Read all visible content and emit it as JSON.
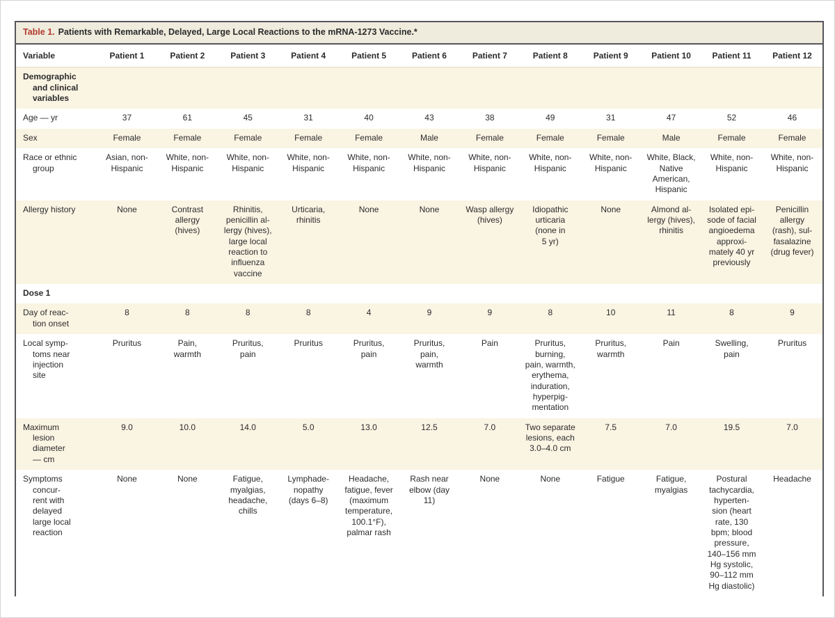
{
  "table": {
    "title": {
      "label": "Table 1.",
      "text": "Patients with Remarkable, Delayed, Large Local Reactions to the mRNA-1273 Vaccine.*"
    },
    "columns": [
      "Variable",
      "Patient 1",
      "Patient 2",
      "Patient 3",
      "Patient 4",
      "Patient 5",
      "Patient 6",
      "Patient 7",
      "Patient 8",
      "Patient 9",
      "Patient 10",
      "Patient 11",
      "Patient 12"
    ],
    "rows": [
      {
        "kind": "section",
        "shaded": true,
        "label": "Demographic\nand clinical\nvariables"
      },
      {
        "kind": "data",
        "shaded": false,
        "label": "Age — yr",
        "cells": [
          "37",
          "61",
          "45",
          "31",
          "40",
          "43",
          "38",
          "49",
          "31",
          "47",
          "52",
          "46"
        ]
      },
      {
        "kind": "data",
        "shaded": true,
        "label": "Sex",
        "cells": [
          "Female",
          "Female",
          "Female",
          "Female",
          "Female",
          "Male",
          "Female",
          "Female",
          "Female",
          "Male",
          "Female",
          "Female"
        ]
      },
      {
        "kind": "data",
        "shaded": false,
        "label": "Race or ethnic\ngroup",
        "cells": [
          "Asian, non-\nHispanic",
          "White, non-\nHispanic",
          "White, non-\nHispanic",
          "White, non-\nHispanic",
          "White, non-\nHispanic",
          "White, non-\nHispanic",
          "White, non-\nHispanic",
          "White, non-\nHispanic",
          "White, non-\nHispanic",
          "White, Black,\nNative\nAmerican,\nHispanic",
          "White, non-\nHispanic",
          "White, non-\nHispanic"
        ]
      },
      {
        "kind": "data",
        "shaded": true,
        "label": "Allergy history",
        "cells": [
          "None",
          "Contrast\nallergy\n(hives)",
          "Rhinitis,\npenicillin al-\nlergy (hives),\nlarge local\nreaction to\ninfluenza\nvaccine",
          "Urticaria,\nrhinitis",
          "None",
          "None",
          "Wasp allergy\n(hives)",
          "Idiopathic\nurticaria\n(none in\n5 yr)",
          "None",
          "Almond al-\nlergy (hives),\nrhinitis",
          "Isolated epi-\nsode of facial\nangioedema\napproxi-\nmately 40 yr\npreviously",
          "Penicillin\nallergy\n(rash), sul-\nfasalazine\n(drug fever)"
        ]
      },
      {
        "kind": "section",
        "shaded": false,
        "label": "Dose 1"
      },
      {
        "kind": "data",
        "shaded": true,
        "label": "Day of reac-\ntion onset",
        "cells": [
          "8",
          "8",
          "8",
          "8",
          "4",
          "9",
          "9",
          "8",
          "10",
          "11",
          "8",
          "9"
        ]
      },
      {
        "kind": "data",
        "shaded": false,
        "label": "Local symp-\ntoms near\ninjection\nsite",
        "cells": [
          "Pruritus",
          "Pain,\nwarmth",
          "Pruritus,\npain",
          "Pruritus",
          "Pruritus,\npain",
          "Pruritus,\npain,\nwarmth",
          "Pain",
          "Pruritus,\nburning,\npain, warmth,\nerythema,\ninduration,\nhyperpig-\nmentation",
          "Pruritus,\nwarmth",
          "Pain",
          "Swelling,\npain",
          "Pruritus"
        ]
      },
      {
        "kind": "data",
        "shaded": true,
        "label": "Maximum\nlesion\ndiameter\n— cm",
        "cells": [
          "9.0",
          "10.0",
          "14.0",
          "5.0",
          "13.0",
          "12.5",
          "7.0",
          "Two separate\nlesions, each\n3.0–4.0 cm",
          "7.5",
          "7.0",
          "19.5",
          "7.0"
        ]
      },
      {
        "kind": "data",
        "shaded": false,
        "label": "Symptoms\nconcur-\nrent with\ndelayed\nlarge local\nreaction",
        "cells": [
          "None",
          "None",
          "Fatigue,\nmyalgias,\nheadache,\nchills",
          "Lymphade-\nnopathy\n(days 6–8)",
          "Headache,\nfatigue, fever\n(maximum\ntemperature,\n100.1°F),\npalmar rash",
          "Rash near\nelbow (day\n11)",
          "None",
          "None",
          "Fatigue",
          "Fatigue,\nmyalgias",
          "Postural\ntachycardia,\nhyperten-\nsion (heart\nrate, 130\nbpm; blood\npressure,\n140–156 mm\nHg systolic,\n90–112 mm\nHg diastolic)",
          "Headache"
        ]
      }
    ]
  },
  "colors": {
    "accent_red": "#b13a2e",
    "title_bar_bg": "#efebdd",
    "row_shade": "#faf4e3",
    "frame_border": "#55565a",
    "text": "#2b2b2b"
  }
}
